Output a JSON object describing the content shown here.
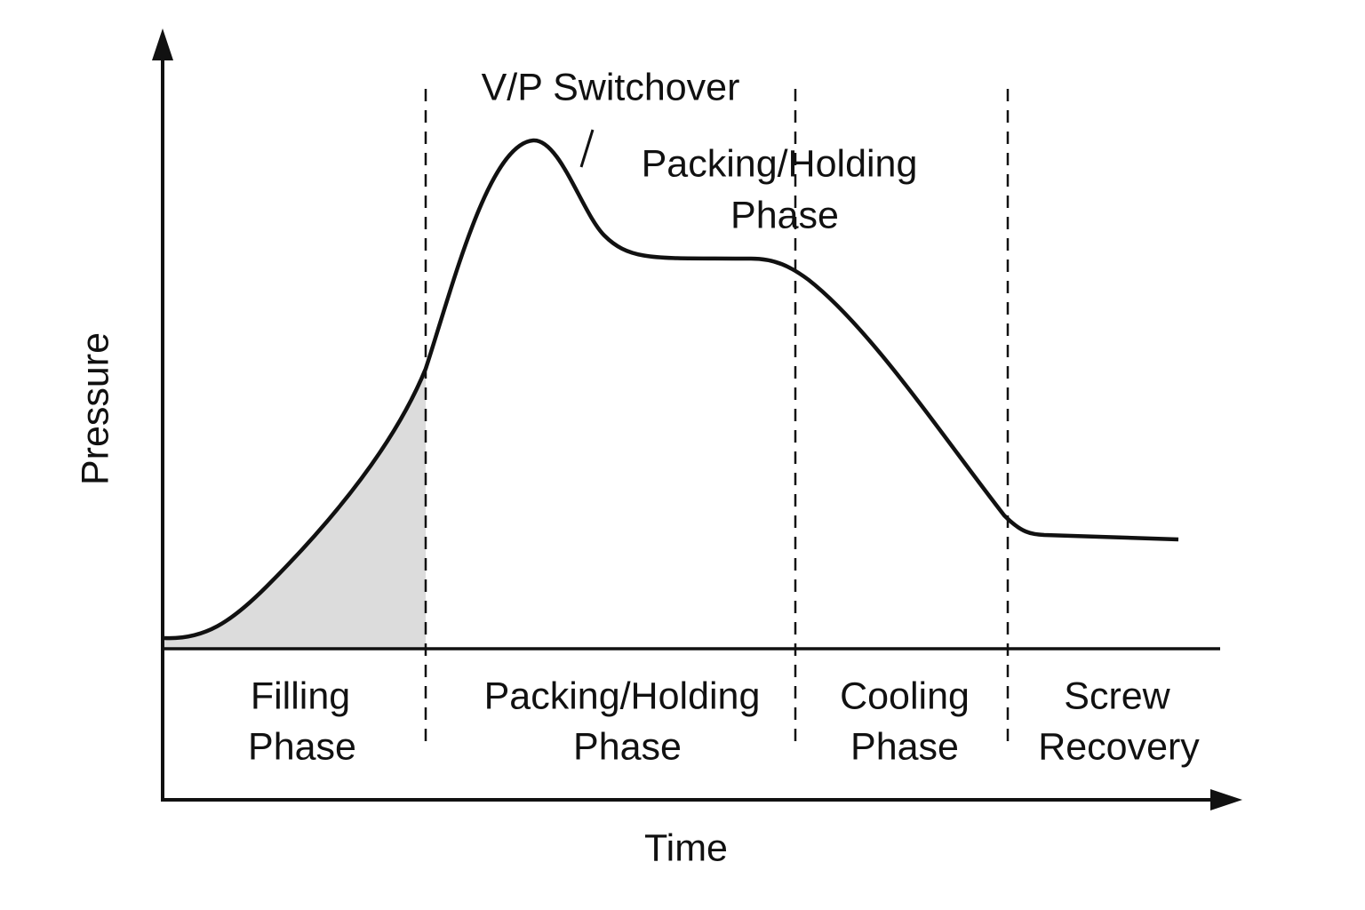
{
  "axes": {
    "y_label": "Pressure",
    "x_label": "Time"
  },
  "annotations": [
    {
      "lines": [
        "V/P Switchover"
      ]
    },
    {
      "lines": [
        "Packing/Holding",
        "Phase"
      ]
    }
  ],
  "phases": [
    {
      "lines": [
        "Filling",
        "Phase"
      ]
    },
    {
      "lines": [
        "Packing/Holding",
        "Phase"
      ]
    },
    {
      "lines": [
        "Cooling",
        "Phase"
      ]
    },
    {
      "lines": [
        "Screw",
        "Recovery"
      ]
    }
  ]
}
